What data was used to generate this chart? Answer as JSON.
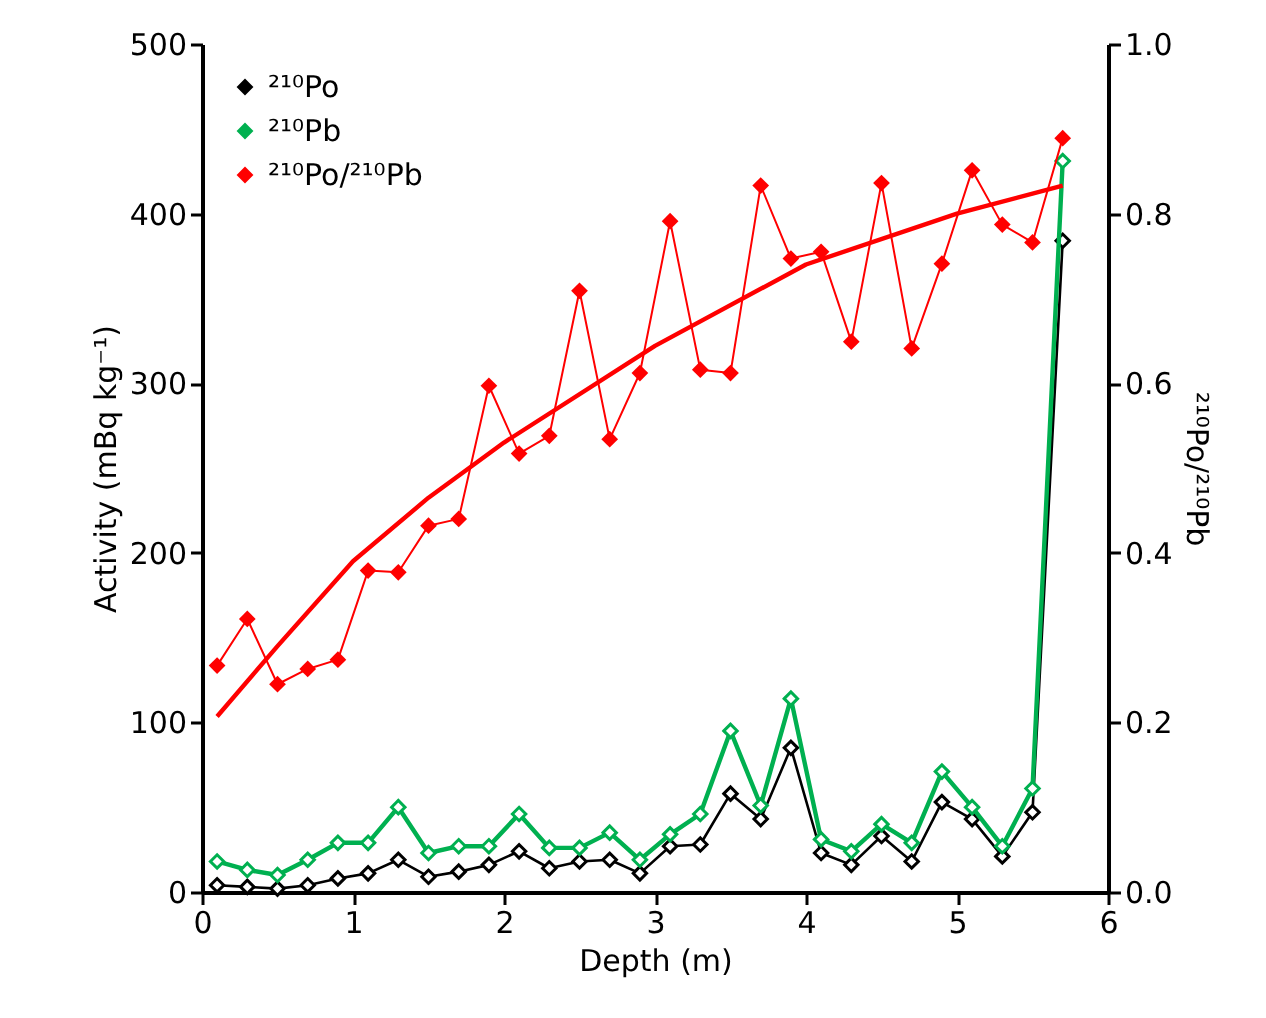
{
  "chart_data": {
    "type": "line",
    "xlabel": "Depth (m)",
    "ylabel": "Activity  (mBq kg⁻¹)",
    "y2label": "²¹⁰Po/²¹⁰Pb",
    "x": [
      0.1,
      0.3,
      0.5,
      0.7,
      0.9,
      1.1,
      1.3,
      1.5,
      1.7,
      1.9,
      2.1,
      2.3,
      2.5,
      2.7,
      2.9,
      3.1,
      3.3,
      3.5,
      3.7,
      3.9,
      4.1,
      4.3,
      4.5,
      4.7,
      4.9,
      5.1,
      5.3,
      5.5,
      5.7
    ],
    "series": [
      {
        "name": "²¹⁰Po",
        "color": "#000000",
        "marker": "diamond",
        "values": [
          4,
          3,
          2,
          4,
          8,
          11,
          19,
          9,
          12,
          16,
          24,
          14,
          18,
          19,
          11,
          27,
          28,
          58,
          43,
          85,
          23,
          16,
          33,
          18,
          53,
          43,
          21,
          47,
          384
        ]
      },
      {
        "name": "²¹⁰Pb",
        "color": "#00b050",
        "marker": "diamond",
        "values": [
          18,
          13,
          10,
          19,
          29,
          29,
          50,
          23,
          27,
          27,
          46,
          26,
          26,
          35,
          19,
          34,
          46,
          95,
          51,
          114,
          31,
          24,
          40,
          29,
          71,
          50,
          27,
          61,
          431
        ]
      },
      {
        "name": "²¹⁰Po/²¹⁰Pb",
        "color": "#ff0000",
        "marker": "diamond",
        "axis": "y2",
        "values": [
          0.267,
          0.322,
          0.245,
          0.263,
          0.274,
          0.379,
          0.377,
          0.432,
          0.44,
          0.597,
          0.517,
          0.538,
          0.709,
          0.534,
          0.612,
          0.791,
          0.616,
          0.612,
          0.833,
          0.747,
          0.755,
          0.649,
          0.836,
          0.641,
          0.741,
          0.851,
          0.787,
          0.766,
          0.889
        ]
      },
      {
        "type": "line",
        "color": "#ff0000",
        "axis": "y2",
        "marker": "none",
        "x": [
          0.1,
          0.5,
          1,
          1.5,
          2,
          3,
          4,
          5,
          5.7
        ],
        "values": [
          0.207,
          0.29,
          0.39,
          0.465,
          0.53,
          0.644,
          0.74,
          0.8,
          0.833
        ]
      }
    ],
    "xlim": [
      0,
      6
    ],
    "xticks": [
      0,
      1,
      2,
      3,
      4,
      5,
      6
    ],
    "ylim": [
      0,
      500
    ],
    "yticks": [
      0,
      100,
      200,
      300,
      400,
      500
    ],
    "y2lim": [
      0,
      1
    ],
    "y2ticks": [
      {
        "value": 0,
        "label": "0.0"
      },
      0.2,
      0.4,
      0.6,
      0.8,
      {
        "value": 1,
        "label": "1.0"
      }
    ],
    "grid": false,
    "legend": "top left",
    "line_style": "solid"
  }
}
